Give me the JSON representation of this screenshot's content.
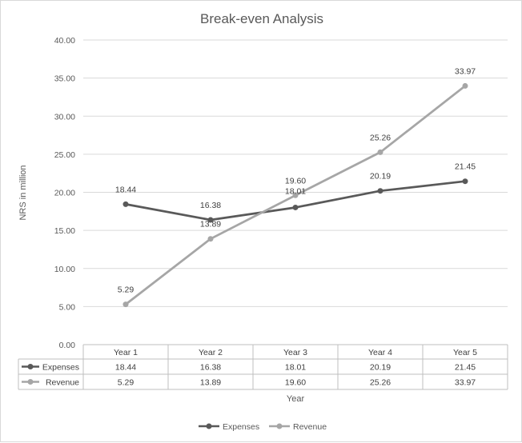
{
  "chart_data": {
    "type": "line",
    "title": "Break-even Analysis",
    "xlabel": "Year",
    "ylabel": "NRS in million",
    "ylim": [
      0,
      40
    ],
    "yticks": [
      "0.00",
      "5.00",
      "10.00",
      "15.00",
      "20.00",
      "25.00",
      "30.00",
      "35.00",
      "40.00"
    ],
    "categories": [
      "Year 1",
      "Year 2",
      "Year 3",
      "Year 4",
      "Year 5"
    ],
    "grid": true,
    "legend_position": "bottom",
    "data_table": true,
    "series": [
      {
        "name": "Expenses",
        "color": "#595959",
        "values": [
          18.44,
          16.38,
          18.01,
          20.19,
          21.45
        ],
        "labels": [
          "18.44",
          "16.38",
          "18.01",
          "20.19",
          "21.45"
        ]
      },
      {
        "name": "Revenue",
        "color": "#a6a6a6",
        "values": [
          5.29,
          13.89,
          19.6,
          25.26,
          33.97
        ],
        "labels": [
          "5.29",
          "13.89",
          "19.60",
          "25.26",
          "33.97"
        ]
      }
    ]
  }
}
